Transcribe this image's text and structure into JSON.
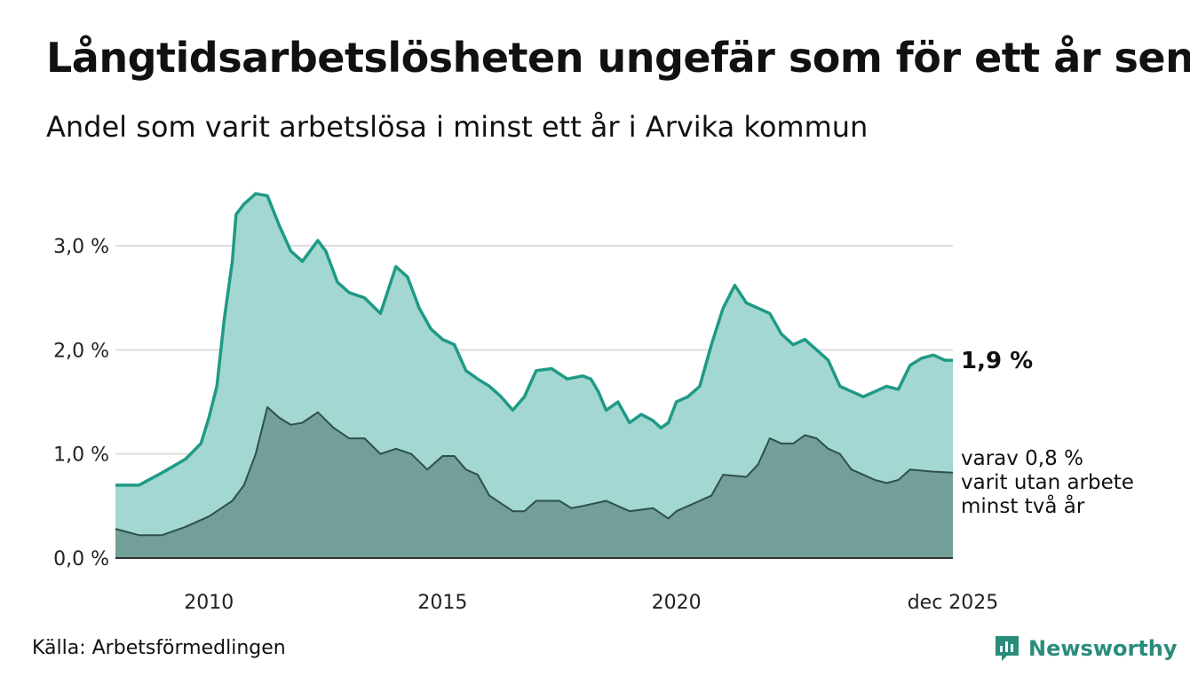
{
  "title": "Långtidsarbetslösheten ungefär som för ett år sen",
  "subtitle": "Andel som varit arbetslösa i minst ett år i Arvika kommun",
  "source": "Källa: Arbetsförmedlingen",
  "brand": "Newsworthy",
  "colors": {
    "total_line": "#1f9a86",
    "total_fill": "#a3d7d2",
    "sub_line": "#2f4f4a",
    "sub_fill": "#729f98",
    "grid": "#dddddd",
    "brand": "#2a8c7c"
  },
  "chart_data": {
    "type": "area",
    "x_start": 2008.0,
    "x_end": 2025.917,
    "ylim": [
      0,
      3.6
    ],
    "yticks": [
      0,
      1,
      2,
      3
    ],
    "ytick_labels": [
      "0,0 %",
      "1,0 %",
      "2,0 %",
      "3,0 %"
    ],
    "xticks": [
      2010,
      2015,
      2020,
      2025.917
    ],
    "xtick_labels": [
      "2010",
      "2015",
      "2020",
      "dec 2025"
    ],
    "grid": true,
    "series": [
      {
        "name": "Andel som varit arbetslösa i minst ett år",
        "end_label": "1,9 %",
        "points": [
          [
            2008.0,
            0.7
          ],
          [
            2008.5,
            0.7
          ],
          [
            2009.0,
            0.82
          ],
          [
            2009.5,
            0.95
          ],
          [
            2009.83,
            1.1
          ],
          [
            2010.0,
            1.35
          ],
          [
            2010.17,
            1.65
          ],
          [
            2010.33,
            2.3
          ],
          [
            2010.5,
            2.85
          ],
          [
            2010.58,
            3.3
          ],
          [
            2010.75,
            3.4
          ],
          [
            2011.0,
            3.5
          ],
          [
            2011.25,
            3.48
          ],
          [
            2011.5,
            3.2
          ],
          [
            2011.75,
            2.95
          ],
          [
            2012.0,
            2.85
          ],
          [
            2012.33,
            3.05
          ],
          [
            2012.5,
            2.95
          ],
          [
            2012.75,
            2.65
          ],
          [
            2013.0,
            2.55
          ],
          [
            2013.33,
            2.5
          ],
          [
            2013.67,
            2.35
          ],
          [
            2014.0,
            2.8
          ],
          [
            2014.25,
            2.7
          ],
          [
            2014.5,
            2.4
          ],
          [
            2014.75,
            2.2
          ],
          [
            2015.0,
            2.1
          ],
          [
            2015.25,
            2.05
          ],
          [
            2015.5,
            1.8
          ],
          [
            2015.75,
            1.72
          ],
          [
            2016.0,
            1.65
          ],
          [
            2016.25,
            1.55
          ],
          [
            2016.5,
            1.42
          ],
          [
            2016.75,
            1.55
          ],
          [
            2017.0,
            1.8
          ],
          [
            2017.33,
            1.82
          ],
          [
            2017.67,
            1.72
          ],
          [
            2018.0,
            1.75
          ],
          [
            2018.17,
            1.72
          ],
          [
            2018.33,
            1.6
          ],
          [
            2018.5,
            1.42
          ],
          [
            2018.75,
            1.5
          ],
          [
            2019.0,
            1.3
          ],
          [
            2019.25,
            1.38
          ],
          [
            2019.5,
            1.32
          ],
          [
            2019.67,
            1.25
          ],
          [
            2019.83,
            1.3
          ],
          [
            2020.0,
            1.5
          ],
          [
            2020.25,
            1.55
          ],
          [
            2020.5,
            1.65
          ],
          [
            2020.75,
            2.05
          ],
          [
            2021.0,
            2.4
          ],
          [
            2021.25,
            2.62
          ],
          [
            2021.5,
            2.45
          ],
          [
            2021.75,
            2.4
          ],
          [
            2022.0,
            2.35
          ],
          [
            2022.25,
            2.15
          ],
          [
            2022.5,
            2.05
          ],
          [
            2022.75,
            2.1
          ],
          [
            2023.0,
            2.0
          ],
          [
            2023.25,
            1.9
          ],
          [
            2023.5,
            1.65
          ],
          [
            2023.75,
            1.6
          ],
          [
            2024.0,
            1.55
          ],
          [
            2024.25,
            1.6
          ],
          [
            2024.5,
            1.65
          ],
          [
            2024.75,
            1.62
          ],
          [
            2025.0,
            1.85
          ],
          [
            2025.25,
            1.92
          ],
          [
            2025.5,
            1.95
          ],
          [
            2025.75,
            1.9
          ],
          [
            2025.917,
            1.9
          ]
        ]
      },
      {
        "name": "varav varit utan arbete minst två år",
        "end_label": [
          "varav 0,8 %",
          "varit utan arbete",
          "minst två år"
        ],
        "points": [
          [
            2008.0,
            0.28
          ],
          [
            2008.5,
            0.22
          ],
          [
            2009.0,
            0.22
          ],
          [
            2009.5,
            0.3
          ],
          [
            2010.0,
            0.4
          ],
          [
            2010.5,
            0.55
          ],
          [
            2010.75,
            0.7
          ],
          [
            2011.0,
            1.0
          ],
          [
            2011.25,
            1.45
          ],
          [
            2011.5,
            1.35
          ],
          [
            2011.75,
            1.28
          ],
          [
            2012.0,
            1.3
          ],
          [
            2012.33,
            1.4
          ],
          [
            2012.67,
            1.25
          ],
          [
            2013.0,
            1.15
          ],
          [
            2013.33,
            1.15
          ],
          [
            2013.67,
            1.0
          ],
          [
            2014.0,
            1.05
          ],
          [
            2014.33,
            1.0
          ],
          [
            2014.67,
            0.85
          ],
          [
            2015.0,
            0.98
          ],
          [
            2015.25,
            0.98
          ],
          [
            2015.5,
            0.85
          ],
          [
            2015.75,
            0.8
          ],
          [
            2016.0,
            0.6
          ],
          [
            2016.5,
            0.45
          ],
          [
            2016.75,
            0.45
          ],
          [
            2017.0,
            0.55
          ],
          [
            2017.5,
            0.55
          ],
          [
            2017.75,
            0.48
          ],
          [
            2018.0,
            0.5
          ],
          [
            2018.5,
            0.55
          ],
          [
            2019.0,
            0.45
          ],
          [
            2019.5,
            0.48
          ],
          [
            2019.83,
            0.38
          ],
          [
            2020.0,
            0.45
          ],
          [
            2020.5,
            0.55
          ],
          [
            2020.75,
            0.6
          ],
          [
            2021.0,
            0.8
          ],
          [
            2021.5,
            0.78
          ],
          [
            2021.75,
            0.9
          ],
          [
            2022.0,
            1.15
          ],
          [
            2022.25,
            1.1
          ],
          [
            2022.5,
            1.1
          ],
          [
            2022.75,
            1.18
          ],
          [
            2023.0,
            1.15
          ],
          [
            2023.25,
            1.05
          ],
          [
            2023.5,
            1.0
          ],
          [
            2023.75,
            0.85
          ],
          [
            2024.0,
            0.8
          ],
          [
            2024.25,
            0.75
          ],
          [
            2024.5,
            0.72
          ],
          [
            2024.75,
            0.75
          ],
          [
            2025.0,
            0.85
          ],
          [
            2025.5,
            0.83
          ],
          [
            2025.917,
            0.82
          ]
        ]
      }
    ]
  }
}
